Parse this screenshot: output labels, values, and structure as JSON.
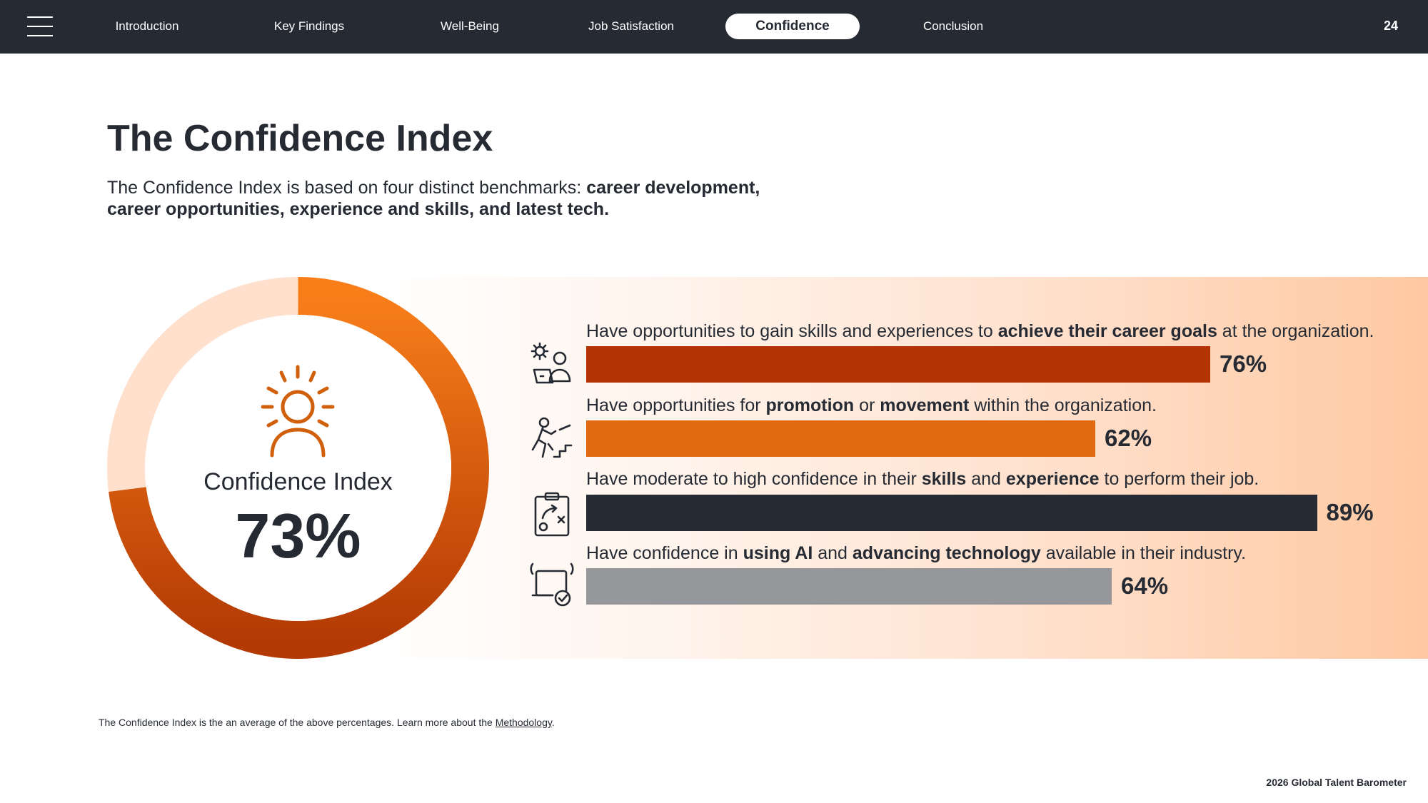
{
  "nav": {
    "tabs": [
      {
        "label": "Introduction",
        "active": false
      },
      {
        "label": "Key Findings",
        "active": false
      },
      {
        "label": "Well-Being",
        "active": false
      },
      {
        "label": "Job Satisfaction",
        "active": false
      },
      {
        "label": "Confidence",
        "active": true
      },
      {
        "label": "Conclusion",
        "active": false
      }
    ],
    "page_number": "24"
  },
  "header": {
    "title": "The Confidence Index",
    "subtitle_plain": "The Confidence Index is based on four distinct benchmarks: ",
    "subtitle_bold": "career development, career opportunities, experience and skills, and latest tech."
  },
  "chart_data": [
    {
      "type": "pie",
      "variant": "donut",
      "label": "Confidence Index",
      "value": 73,
      "value_text": "73%",
      "colors": {
        "fill_start": "#f97e1a",
        "fill_end": "#b33a04",
        "track": "#ffe0cc"
      },
      "icon": "person-sun-icon"
    },
    {
      "type": "bar",
      "orientation": "horizontal",
      "xlim": [
        0,
        100
      ],
      "bars": [
        {
          "label_parts": [
            {
              "text": "Have opportunities to gain skills and experiences to ",
              "bold": false
            },
            {
              "text": "achieve their career goals",
              "bold": true
            },
            {
              "text": " at the organization.",
              "bold": false
            }
          ],
          "value": 76,
          "value_text": "76%",
          "color": "#b53303",
          "icon": "gear-person-laptop-icon"
        },
        {
          "label_parts": [
            {
              "text": "Have opportunities for ",
              "bold": false
            },
            {
              "text": "promotion",
              "bold": true
            },
            {
              "text": " or ",
              "bold": false
            },
            {
              "text": "movement",
              "bold": true
            },
            {
              "text": " within the organization.",
              "bold": false
            }
          ],
          "value": 62,
          "value_text": "62%",
          "color": "#e06912",
          "icon": "person-climbing-stairs-icon"
        },
        {
          "label_parts": [
            {
              "text": "Have moderate to high confidence in their ",
              "bold": false
            },
            {
              "text": "skills",
              "bold": true
            },
            {
              "text": " and ",
              "bold": false
            },
            {
              "text": "experience",
              "bold": true
            },
            {
              "text": " to perform their job.",
              "bold": false
            }
          ],
          "value": 89,
          "value_text": "89%",
          "color": "#262a33",
          "icon": "clipboard-strategy-icon"
        },
        {
          "label_parts": [
            {
              "text": "Have confidence in ",
              "bold": false
            },
            {
              "text": "using AI",
              "bold": true
            },
            {
              "text": " and ",
              "bold": false
            },
            {
              "text": "advancing technology",
              "bold": true
            },
            {
              "text": " available in their industry.",
              "bold": false
            }
          ],
          "value": 64,
          "value_text": "64%",
          "color": "#96979b",
          "icon": "tablet-check-signal-icon"
        }
      ]
    }
  ],
  "footer": {
    "note_text": "The Confidence Index is the an average of the above percentages. Learn more about the ",
    "note_link": "Methodology",
    "note_end": ".",
    "brand": "2026 Global Talent Barometer"
  }
}
